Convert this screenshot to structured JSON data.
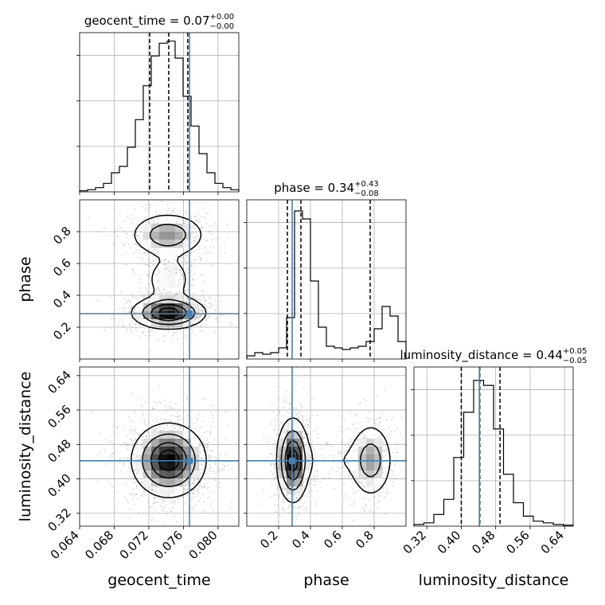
{
  "chart_data": {
    "type": "corner",
    "parameters": [
      {
        "key": "geocent_time",
        "label": "geocent_time",
        "title": "geocent_time = 0.07",
        "title_plus": "+0.00",
        "title_minus": "−0.00",
        "range": [
          0.064,
          0.0824
        ],
        "ticks": [
          0.064,
          0.068,
          0.072,
          0.076,
          0.08
        ],
        "tick_labels": [
          "0.064",
          "0.068",
          "0.072",
          "0.076",
          "0.080"
        ],
        "truth": 0.0767,
        "quantiles": [
          0.0721,
          0.0743,
          0.0765
        ],
        "hist": [
          0.5,
          1,
          2,
          4,
          9,
          12,
          21,
          34,
          50,
          64,
          70,
          71,
          63,
          45,
          31,
          18,
          9,
          4,
          2,
          1
        ],
        "hist_max": 75
      },
      {
        "key": "phase",
        "label": "phase",
        "title": "phase = 0.34",
        "title_plus": "+0.43",
        "title_minus": "−0.08",
        "range": [
          0.0,
          1.0
        ],
        "ticks": [
          0.2,
          0.4,
          0.6,
          0.8
        ],
        "tick_labels": [
          "0.2",
          "0.4",
          "0.6",
          "0.8"
        ],
        "truth": 0.285,
        "quantiles": [
          0.255,
          0.34,
          0.775
        ],
        "hist": [
          2,
          4,
          3,
          4,
          7,
          26,
          93,
          88,
          49,
          20,
          8,
          7,
          6,
          7,
          8,
          11,
          19,
          33,
          27,
          11
        ],
        "hist_max": 100
      },
      {
        "key": "luminosity_distance",
        "label": "luminosity_distance",
        "title": "luminosity_distance = 0.44",
        "title_plus": "+0.05",
        "title_minus": "−0.05",
        "range": [
          0.29,
          0.66
        ],
        "ticks": [
          0.32,
          0.4,
          0.48,
          0.56,
          0.64
        ],
        "tick_labels": [
          "0.32",
          "0.40",
          "0.48",
          "0.56",
          "0.64"
        ],
        "truth": 0.442,
        "quantiles": [
          0.4,
          0.443,
          0.49
        ],
        "hist": [
          1,
          2,
          7,
          16,
          41,
          68,
          87,
          84,
          58,
          31,
          14,
          6,
          3,
          2,
          1,
          0.6
        ],
        "hist_max": 95
      }
    ],
    "density_2d": [
      {
        "xkey": "geocent_time",
        "ykey": "phase",
        "blobs": [
          {
            "cx": 0.0743,
            "cy": 0.29,
            "sx": 0.0021,
            "sy": 0.05,
            "w": 1.0
          },
          {
            "cx": 0.0742,
            "cy": 0.78,
            "sx": 0.0022,
            "sy": 0.07,
            "w": 0.55
          },
          {
            "cx": 0.0743,
            "cy": 0.5,
            "sx": 0.0016,
            "sy": 0.09,
            "w": 0.25
          }
        ]
      },
      {
        "xkey": "geocent_time",
        "ykey": "luminosity_distance",
        "blobs": [
          {
            "cx": 0.0743,
            "cy": 0.443,
            "sx": 0.0021,
            "sy": 0.042,
            "w": 1.0
          }
        ]
      },
      {
        "xkey": "phase",
        "ykey": "luminosity_distance",
        "blobs": [
          {
            "cx": 0.29,
            "cy": 0.443,
            "sx": 0.05,
            "sy": 0.048,
            "w": 1.0
          },
          {
            "cx": 0.78,
            "cy": 0.443,
            "sx": 0.07,
            "sy": 0.045,
            "w": 0.5
          },
          {
            "cx": 0.53,
            "cy": 0.443,
            "sx": 0.12,
            "sy": 0.03,
            "w": 0.12
          }
        ]
      }
    ],
    "truth_color": "#4682b4",
    "grid": true
  }
}
